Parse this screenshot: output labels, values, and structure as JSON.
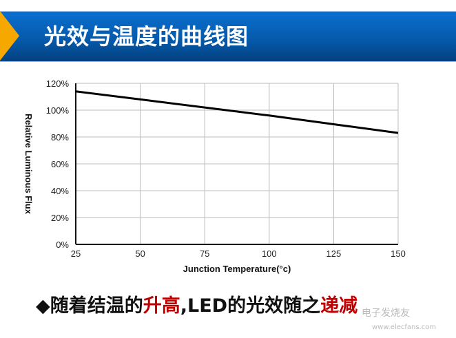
{
  "header": {
    "title": "光效与温度的曲线图"
  },
  "chart_data": {
    "type": "line",
    "title": "",
    "xlabel": "Junction Temperature(°c)",
    "ylabel": "Relative Luminous Flux",
    "xlim": [
      25,
      150
    ],
    "ylim": [
      0,
      120
    ],
    "xticks": [
      "25",
      "50",
      "75",
      "100",
      "125",
      "150"
    ],
    "yticks": [
      "0%",
      "20%",
      "40%",
      "60%",
      "80%",
      "100%",
      "120%"
    ],
    "grid": true,
    "series": [
      {
        "x": [
          25,
          50,
          75,
          100,
          125,
          150
        ],
        "y": [
          114,
          108,
          102,
          96,
          89.5,
          83
        ]
      }
    ]
  },
  "caption": {
    "bullet": "◆",
    "part1": "随着结温的",
    "part2": "升高",
    "part3": ",LED的光效随之",
    "part4": "递减",
    "highlight_color": "#c00000"
  },
  "watermark": {
    "brand": "电子发烧友",
    "url": "www.elecfans.com"
  }
}
